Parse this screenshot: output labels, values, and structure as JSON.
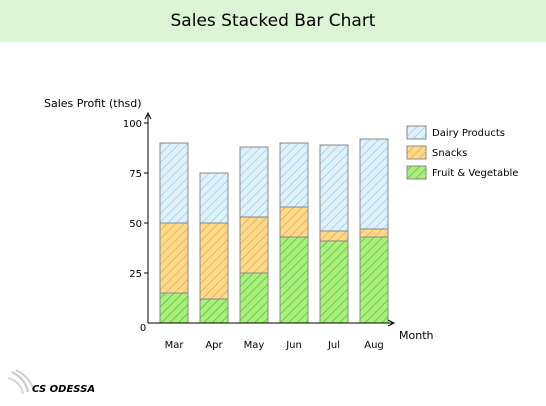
{
  "chart_data": {
    "type": "bar",
    "stacked": true,
    "title": "Sales Stacked Bar Chart",
    "ylabel": "Sales Profit (thsd)",
    "xlabel": "Month",
    "origin_label": "0",
    "ylim": [
      0,
      100
    ],
    "yticks": [
      25,
      50,
      75,
      100
    ],
    "grid": false,
    "legend_position": "top-right",
    "categories": [
      "Mar",
      "Apr",
      "May",
      "Jun",
      "Jul",
      "Aug"
    ],
    "series": [
      {
        "name": "Fruit & Vegetable",
        "values": [
          15,
          12,
          25,
          43,
          41,
          43
        ],
        "color": "#a8f07c",
        "hatch": "#5aa832"
      },
      {
        "name": "Snacks",
        "values": [
          35,
          38,
          28,
          15,
          5,
          4
        ],
        "color": "#ffd98a",
        "hatch": "#e0a040"
      },
      {
        "name": "Dairy Products",
        "values": [
          40,
          25,
          35,
          32,
          43,
          45
        ],
        "color": "#dff1fb",
        "hatch": "#8cc4e4"
      }
    ],
    "legend_order": [
      "Dairy Products",
      "Snacks",
      "Fruit & Vegetable"
    ]
  },
  "watermark": {
    "text": "CS ODESSA"
  }
}
